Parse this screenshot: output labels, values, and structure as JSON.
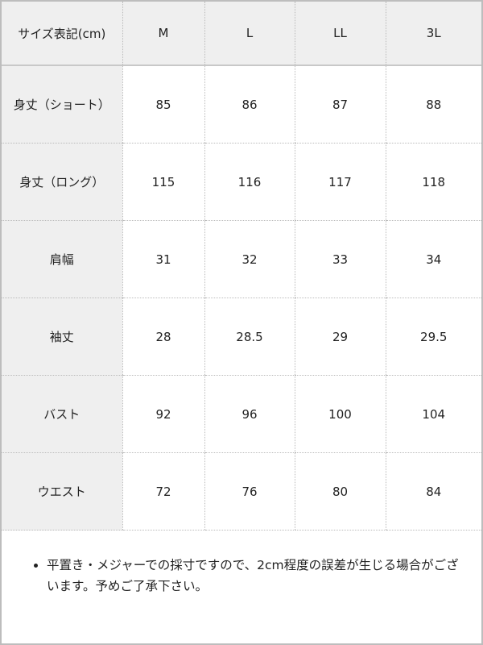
{
  "table": {
    "headers": [
      "サイズ表記(cm)",
      "M",
      "L",
      "LL",
      "3L"
    ],
    "rows": [
      {
        "label": "身丈（ショート）",
        "values": [
          "85",
          "86",
          "87",
          "88"
        ]
      },
      {
        "label": "身丈（ロング）",
        "values": [
          "115",
          "116",
          "117",
          "118"
        ]
      },
      {
        "label": "肩幅",
        "values": [
          "31",
          "32",
          "33",
          "34"
        ]
      },
      {
        "label": "袖丈",
        "values": [
          "28",
          "28.5",
          "29",
          "29.5"
        ]
      },
      {
        "label": "バスト",
        "values": [
          "92",
          "96",
          "100",
          "104"
        ]
      },
      {
        "label": "ウエスト",
        "values": [
          "72",
          "76",
          "80",
          "84"
        ]
      }
    ]
  },
  "notes": [
    "平置き・メジャーでの採寸ですので、2cm程度の誤差が生じる場合がございます。予めご了承下さい。"
  ],
  "colors": {
    "header_bg": "#efefef",
    "border": "#bdbdbd"
  }
}
